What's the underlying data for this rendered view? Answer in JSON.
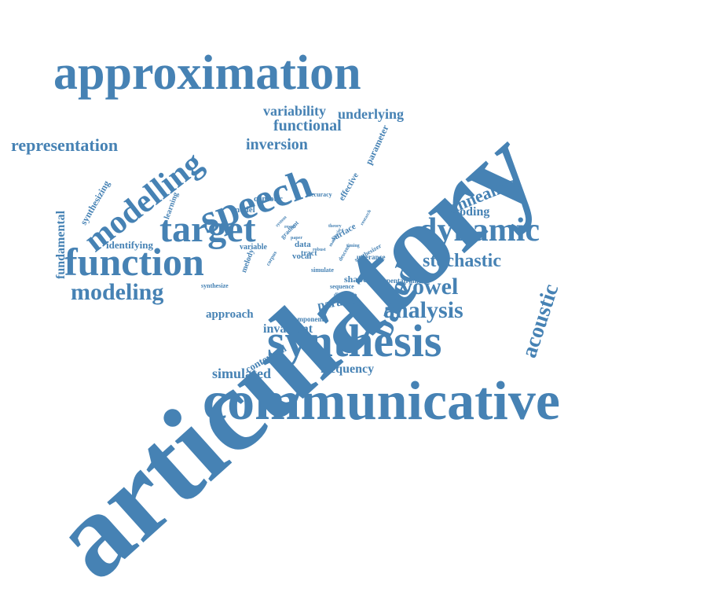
{
  "accent_color": "#4682b4",
  "words": [
    "articulatory",
    "communicative",
    "approximation",
    "synthesis",
    "speech",
    "function",
    "target",
    "dynamic",
    "modelling",
    "based",
    "modeling",
    "analysis",
    "vowel",
    "stochastic",
    "acoustic",
    "representation",
    "annealing",
    "functional",
    "inversion",
    "variability",
    "underlying",
    "simulated",
    "frequency",
    "invariant",
    "approach",
    "encoding",
    "parallel",
    "fundamental",
    "contextual",
    "identifying",
    "parameter",
    "synthesizing",
    "shape",
    "contour",
    "model",
    "learning",
    "effective",
    "vocal",
    "data",
    "tract",
    "variable",
    "melody",
    "accuracy",
    "gradient",
    "surface",
    "system",
    "result",
    "paper",
    "theory",
    "research",
    "descent",
    "corpus",
    "utterance",
    "synthesizer",
    "simulate",
    "sequence",
    "pentatrainer",
    "disyllabic",
    "component",
    "synthesize",
    "robust",
    "mandarin",
    "timing",
    "vowel2"
  ]
}
